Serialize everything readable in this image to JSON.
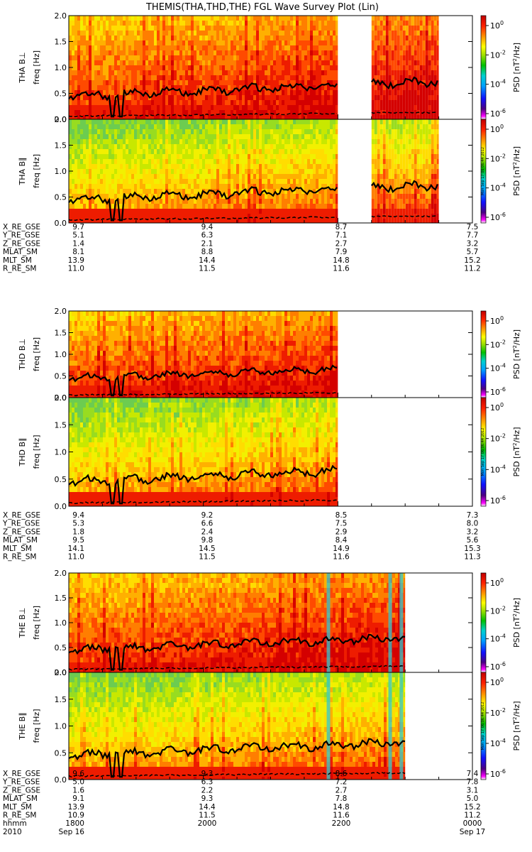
{
  "chart_data": {
    "type": "heatmap",
    "title": "THEMIS(THA,THD,THE) FGL Wave Survey Plot (Lin)",
    "stamp": "Mon Sep 17 06:06:44 2012",
    "y_tick_labels": [
      "0.0",
      "0.5",
      "1.0",
      "1.5",
      "2.0"
    ],
    "colorbar_tick_labels": [
      "10^0",
      "10^-2",
      "10^-4",
      "10^-6"
    ],
    "colorbar_label": "PSD [nT^2/Hz]",
    "ylim": [
      0,
      2
    ],
    "x_range_hhmm": [
      1800,
      2400
    ],
    "probes": [
      {
        "probe": "THA",
        "data_intervals": [
          [
            1800,
            2200
          ],
          [
            2230,
            2330
          ]
        ],
        "panels": [
          {
            "label": "THA B⊥",
            "ylabel": "freq [Hz]"
          },
          {
            "label": "THA B∥",
            "ylabel": "freq [Hz]"
          }
        ],
        "ephemeris": [
          {
            "name": "X_RE_GSE",
            "values": [
              "9.7",
              "9.4",
              "8.7",
              "7.5"
            ]
          },
          {
            "name": "Y_RE_GSE",
            "values": [
              "5.1",
              "6.3",
              "7.1",
              "7.7"
            ]
          },
          {
            "name": "Z_RE_GSE",
            "values": [
              "1.4",
              "2.1",
              "2.7",
              "3.2"
            ]
          },
          {
            "name": "MLAT_SM",
            "values": [
              "8.1",
              "8.8",
              "7.9",
              "5.7"
            ]
          },
          {
            "name": "MLT_SM",
            "values": [
              "13.9",
              "14.4",
              "14.8",
              "15.2"
            ]
          },
          {
            "name": "R_RE_SM",
            "values": [
              "11.0",
              "11.5",
              "11.6",
              "11.2"
            ]
          }
        ]
      },
      {
        "probe": "THD",
        "data_intervals": [
          [
            1800,
            2200
          ]
        ],
        "panels": [
          {
            "label": "THD B⊥",
            "ylabel": "freq [Hz]"
          },
          {
            "label": "THD B∥",
            "ylabel": "freq [Hz]"
          }
        ],
        "ephemeris": [
          {
            "name": "X_RE_GSE",
            "values": [
              "9.4",
              "9.2",
              "8.5",
              "7.3"
            ]
          },
          {
            "name": "Y_RE_GSE",
            "values": [
              "5.3",
              "6.6",
              "7.5",
              "8.0"
            ]
          },
          {
            "name": "Z_RE_GSE",
            "values": [
              "1.8",
              "2.4",
              "2.9",
              "3.2"
            ]
          },
          {
            "name": "MLAT_SM",
            "values": [
              "9.5",
              "9.8",
              "8.4",
              "5.6"
            ]
          },
          {
            "name": "MLT_SM",
            "values": [
              "14.1",
              "14.5",
              "14.9",
              "15.3"
            ]
          },
          {
            "name": "R_RE_SM",
            "values": [
              "11.0",
              "11.5",
              "11.6",
              "11.3"
            ]
          }
        ]
      },
      {
        "probe": "THE",
        "data_intervals": [
          [
            1800,
            2300
          ]
        ],
        "panels": [
          {
            "label": "THE B⊥",
            "ylabel": "freq [Hz]"
          },
          {
            "label": "THE B∥",
            "ylabel": "freq [Hz]"
          }
        ],
        "ephemeris": [
          {
            "name": "X_RE_GSE",
            "values": [
              "9.6",
              "9.3",
              "8.6",
              "7.4"
            ]
          },
          {
            "name": "Y_RE_GSE",
            "values": [
              "5.0",
              "6.3",
              "7.2",
              "7.8"
            ]
          },
          {
            "name": "Z_RE_GSE",
            "values": [
              "1.6",
              "2.2",
              "2.7",
              "3.1"
            ]
          },
          {
            "name": "MLAT_SM",
            "values": [
              "9.1",
              "9.3",
              "7.8",
              "5.0"
            ]
          },
          {
            "name": "MLT_SM",
            "values": [
              "13.9",
              "14.4",
              "14.8",
              "15.2"
            ]
          },
          {
            "name": "R_RE_SM",
            "values": [
              "10.9",
              "11.5",
              "11.6",
              "11.2"
            ]
          }
        ],
        "time_rows": [
          {
            "name": "hhmm",
            "values": [
              "1800",
              "2000",
              "2200",
              "0000"
            ]
          },
          {
            "name": "2010",
            "values": [
              "Sep 16",
              "",
              "",
              "Sep 17"
            ]
          }
        ]
      }
    ]
  }
}
